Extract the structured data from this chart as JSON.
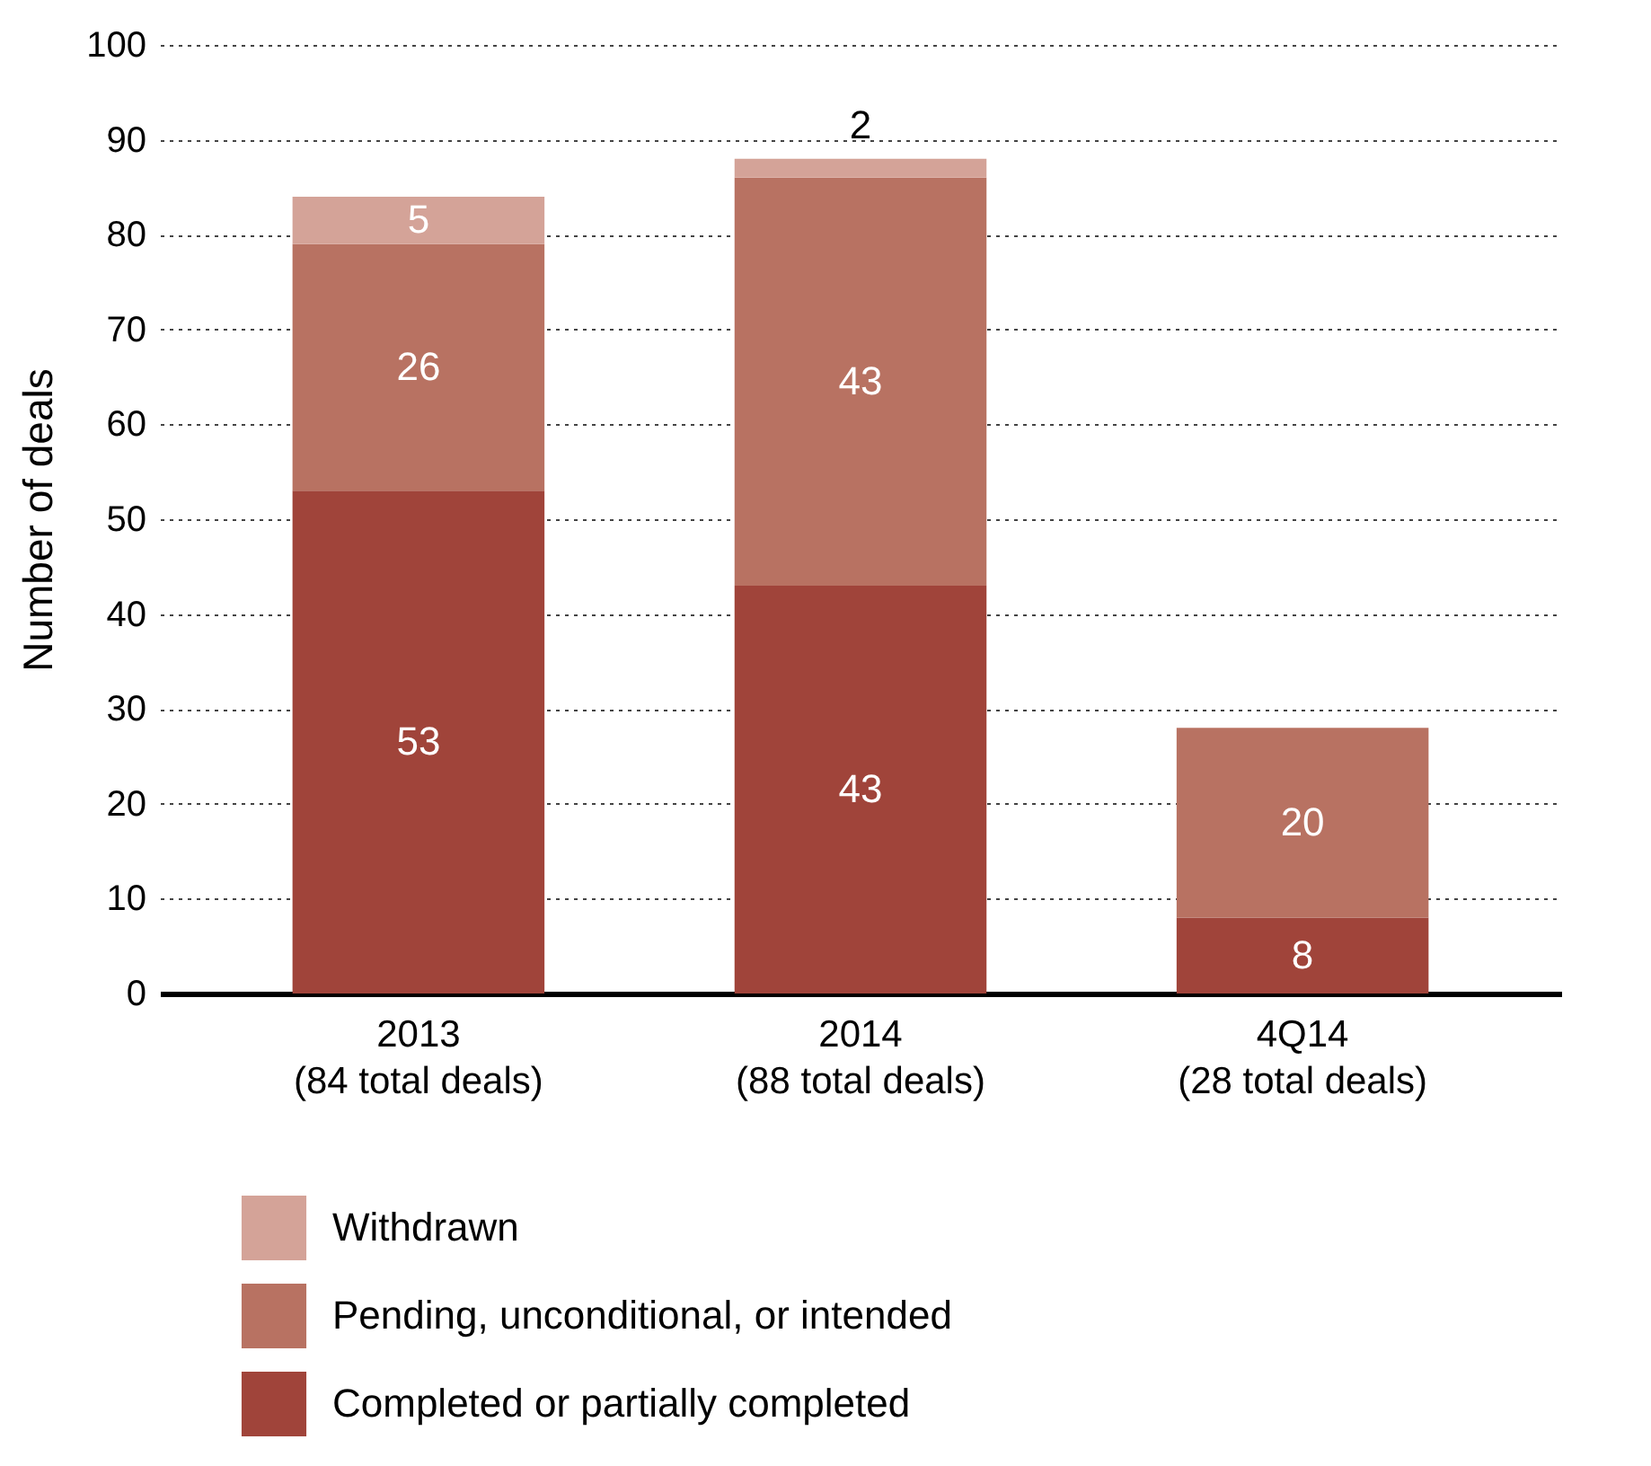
{
  "chart_data": {
    "type": "bar",
    "stacked": true,
    "ylabel": "Number of deals",
    "categories": [
      "2013\n(84 total deals)",
      "2014\n(88 total deals)",
      "4Q14\n(28 total deals)"
    ],
    "series": [
      {
        "name": "Completed or partially completed",
        "color": "#a0443a",
        "values": [
          53,
          43,
          8
        ]
      },
      {
        "name": "Pending, unconditional, or intended",
        "color": "#b87262",
        "values": [
          26,
          43,
          20
        ]
      },
      {
        "name": "Withdrawn",
        "color": "#d4a398",
        "values": [
          5,
          2,
          null
        ]
      }
    ],
    "ylim": [
      0,
      100
    ],
    "yticks": [
      0,
      10,
      20,
      30,
      40,
      50,
      60,
      70,
      80,
      90,
      100
    ],
    "grid": "y",
    "legend": "bottom left",
    "data_labels": true
  }
}
